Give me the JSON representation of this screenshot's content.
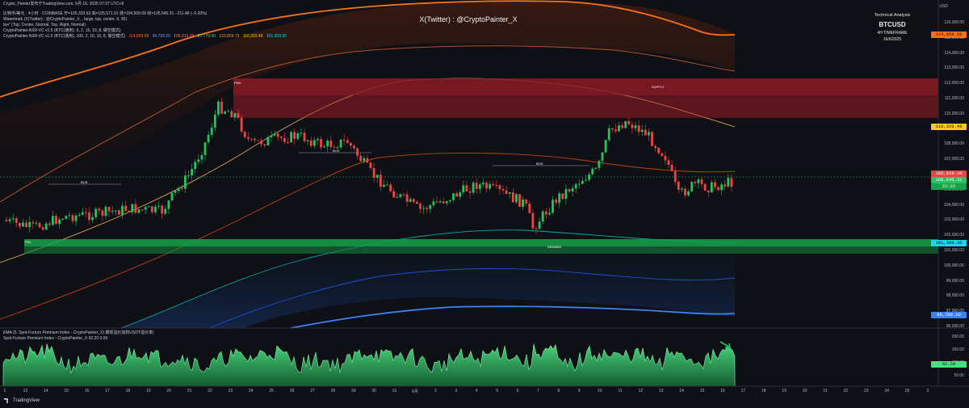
{
  "title_bar": "Crypto_Painter发布于TradingView.com, 6月 16, 2025 07:37 UTC+8",
  "header_lines": [
    "比特币/美元 · 4小时 · COINBASE  开=105,333.53  高=105,571.91  低=104,509.09  收=105,545.31  −211.48 (−0.20%)",
    "Watermark (X(Twitter) : @CryptoPainter_X, , large, top, center, 9, 30)",
    "too\" (Top, Center, Normal, Top, Right, Normal)",
    "CryptoPainter ASR-VC v1.5 (BTC(通用), 5, 2, 16, 10, 8, 做空模式)",
    "CryptoPainter ASR-VC v1.5 (BTC(通用), 100, 2, 16, 10, 8, 做空模式)"
  ],
  "header_line5_values": [
    "114,859.58",
    "96,799.20",
    "105,819.39",
    "87,779.00",
    "123,859.79",
    "110,329.49",
    "101,309.30"
  ],
  "watermark": "X(Twitter) : @CryptoPainter_X",
  "info_box": {
    "line1": "Technical Analysis",
    "symbol": "BTCUSD",
    "timeframe": "4H TIMEFRAME",
    "date": "16/6/2025"
  },
  "currency": "USD",
  "zone_labels": {
    "supply": "SUPPLY",
    "demand": "DEMAND",
    "bos": "BOS",
    "pdh": "PDH",
    "pdl": "PDL"
  },
  "price_labels": {
    "upper_band": "114,859.58",
    "mid_upper": "110,329.49",
    "current": "105,819.39",
    "current2": "105,545.31",
    "timer": "22:22",
    "lower_mid": "101,309.30",
    "lower_band": "96,799.20"
  },
  "y_axis": [
    "116,000.00",
    "115,000.00",
    "114,000.00",
    "113,000.00",
    "112,000.00",
    "111,000.00",
    "110,000.00",
    "109,000.00",
    "108,000.00",
    "107,000.00",
    "106,000.00",
    "105,000.00",
    "104,000.00",
    "103,000.00",
    "102,000.00",
    "101,000.00",
    "100,000.00",
    "99,000.00",
    "98,000.00",
    "97,000.00",
    "96,000.00"
  ],
  "indicator": {
    "line1": "EMA (5, Spot-Furture Premium Index - CryptoPainter_X) 期现溢价加权USDT溢价率)",
    "line2": "Spot-Furture Premium Index - CryptoPainter_X  92.20  0.00",
    "value": "92.20",
    "axis": [
      "200.00",
      "150.00",
      "100.00",
      "50.00"
    ]
  },
  "x_axis": [
    "2",
    "13",
    "14",
    "15",
    "16",
    "17",
    "18",
    "19",
    "20",
    "21",
    "22",
    "23",
    "24",
    "25",
    "26",
    "27",
    "28",
    "29",
    "30",
    "31",
    "6月",
    "2",
    "3",
    "4",
    "5",
    "6",
    "7",
    "8",
    "9",
    "10",
    "11",
    "12",
    "13",
    "14",
    "15",
    "16",
    "17",
    "18",
    "19",
    "20",
    "21",
    "22",
    "23",
    "24",
    "25",
    "2"
  ],
  "brand": "TradingView",
  "colors": {
    "bg": "#0e1015",
    "up": "#22c55e",
    "down": "#ef4444",
    "supply": "#b91c2c",
    "demand": "#16a34a",
    "orange": "#f97316",
    "blue": "#2563eb"
  }
}
